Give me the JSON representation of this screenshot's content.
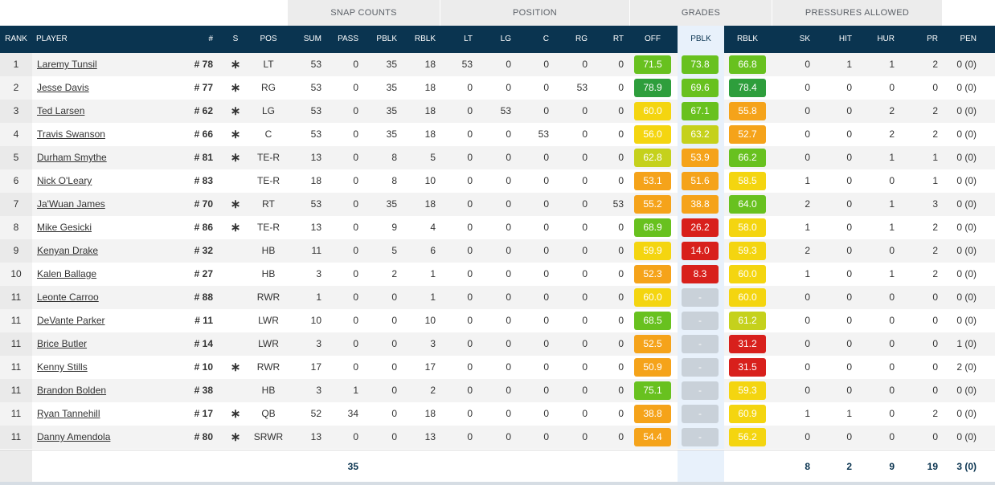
{
  "group_headers": [
    "SNAP COUNTS",
    "POSITION",
    "GRADES",
    "PRESSURES ALLOWED"
  ],
  "columns": [
    "RANK",
    "PLAYER",
    "#",
    "S",
    "POS",
    "SUM",
    "PASS",
    "PBLK",
    "RBLK",
    "LT",
    "LG",
    "C",
    "RG",
    "RT",
    "OFF",
    "PBLK",
    "RBLK",
    "SK",
    "HIT",
    "HUR",
    "PR",
    "PEN"
  ],
  "rows": [
    {
      "rank": "1",
      "player": "Laremy Tunsil",
      "num": "# 78",
      "starter": "*",
      "pos": "LT",
      "sum": "53",
      "pass": "0",
      "pblk": "35",
      "rblk": "18",
      "lt": "53",
      "lg": "0",
      "c": "0",
      "rg": "0",
      "rt": "0",
      "off": "71.5",
      "pblkg": "73.8",
      "rblkg": "66.8",
      "sk": "0",
      "hit": "1",
      "hur": "1",
      "pr": "2",
      "pen": "0 (0)"
    },
    {
      "rank": "2",
      "player": "Jesse Davis",
      "num": "# 77",
      "starter": "*",
      "pos": "RG",
      "sum": "53",
      "pass": "0",
      "pblk": "35",
      "rblk": "18",
      "lt": "0",
      "lg": "0",
      "c": "0",
      "rg": "53",
      "rt": "0",
      "off": "78.9",
      "pblkg": "69.6",
      "rblkg": "78.4",
      "sk": "0",
      "hit": "0",
      "hur": "0",
      "pr": "0",
      "pen": "0 (0)"
    },
    {
      "rank": "3",
      "player": "Ted Larsen",
      "num": "# 62",
      "starter": "*",
      "pos": "LG",
      "sum": "53",
      "pass": "0",
      "pblk": "35",
      "rblk": "18",
      "lt": "0",
      "lg": "53",
      "c": "0",
      "rg": "0",
      "rt": "0",
      "off": "60.0",
      "pblkg": "67.1",
      "rblkg": "55.8",
      "sk": "0",
      "hit": "0",
      "hur": "2",
      "pr": "2",
      "pen": "0 (0)"
    },
    {
      "rank": "4",
      "player": "Travis Swanson",
      "num": "# 66",
      "starter": "*",
      "pos": "C",
      "sum": "53",
      "pass": "0",
      "pblk": "35",
      "rblk": "18",
      "lt": "0",
      "lg": "0",
      "c": "53",
      "rg": "0",
      "rt": "0",
      "off": "56.0",
      "pblkg": "63.2",
      "rblkg": "52.7",
      "sk": "0",
      "hit": "0",
      "hur": "2",
      "pr": "2",
      "pen": "0 (0)"
    },
    {
      "rank": "5",
      "player": "Durham Smythe",
      "num": "# 81",
      "starter": "*",
      "pos": "TE-R",
      "sum": "13",
      "pass": "0",
      "pblk": "8",
      "rblk": "5",
      "lt": "0",
      "lg": "0",
      "c": "0",
      "rg": "0",
      "rt": "0",
      "off": "62.8",
      "pblkg": "53.9",
      "rblkg": "66.2",
      "sk": "0",
      "hit": "0",
      "hur": "1",
      "pr": "1",
      "pen": "0 (0)"
    },
    {
      "rank": "6",
      "player": "Nick O'Leary",
      "num": "# 83",
      "starter": "",
      "pos": "TE-R",
      "sum": "18",
      "pass": "0",
      "pblk": "8",
      "rblk": "10",
      "lt": "0",
      "lg": "0",
      "c": "0",
      "rg": "0",
      "rt": "0",
      "off": "53.1",
      "pblkg": "51.6",
      "rblkg": "58.5",
      "sk": "1",
      "hit": "0",
      "hur": "0",
      "pr": "1",
      "pen": "0 (0)"
    },
    {
      "rank": "7",
      "player": "Ja'Wuan James",
      "num": "# 70",
      "starter": "*",
      "pos": "RT",
      "sum": "53",
      "pass": "0",
      "pblk": "35",
      "rblk": "18",
      "lt": "0",
      "lg": "0",
      "c": "0",
      "rg": "0",
      "rt": "53",
      "off": "55.2",
      "pblkg": "38.8",
      "rblkg": "64.0",
      "sk": "2",
      "hit": "0",
      "hur": "1",
      "pr": "3",
      "pen": "0 (0)"
    },
    {
      "rank": "8",
      "player": "Mike Gesicki",
      "num": "# 86",
      "starter": "*",
      "pos": "TE-R",
      "sum": "13",
      "pass": "0",
      "pblk": "9",
      "rblk": "4",
      "lt": "0",
      "lg": "0",
      "c": "0",
      "rg": "0",
      "rt": "0",
      "off": "68.9",
      "pblkg": "26.2",
      "rblkg": "58.0",
      "sk": "1",
      "hit": "0",
      "hur": "1",
      "pr": "2",
      "pen": "0 (0)"
    },
    {
      "rank": "9",
      "player": "Kenyan Drake",
      "num": "# 32",
      "starter": "",
      "pos": "HB",
      "sum": "11",
      "pass": "0",
      "pblk": "5",
      "rblk": "6",
      "lt": "0",
      "lg": "0",
      "c": "0",
      "rg": "0",
      "rt": "0",
      "off": "59.9",
      "pblkg": "14.0",
      "rblkg": "59.3",
      "sk": "2",
      "hit": "0",
      "hur": "0",
      "pr": "2",
      "pen": "0 (0)"
    },
    {
      "rank": "10",
      "player": "Kalen Ballage",
      "num": "# 27",
      "starter": "",
      "pos": "HB",
      "sum": "3",
      "pass": "0",
      "pblk": "2",
      "rblk": "1",
      "lt": "0",
      "lg": "0",
      "c": "0",
      "rg": "0",
      "rt": "0",
      "off": "52.3",
      "pblkg": "8.3",
      "rblkg": "60.0",
      "sk": "1",
      "hit": "0",
      "hur": "1",
      "pr": "2",
      "pen": "0 (0)"
    },
    {
      "rank": "11",
      "player": "Leonte Carroo",
      "num": "# 88",
      "starter": "",
      "pos": "RWR",
      "sum": "1",
      "pass": "0",
      "pblk": "0",
      "rblk": "1",
      "lt": "0",
      "lg": "0",
      "c": "0",
      "rg": "0",
      "rt": "0",
      "off": "60.0",
      "pblkg": "-",
      "rblkg": "60.0",
      "sk": "0",
      "hit": "0",
      "hur": "0",
      "pr": "0",
      "pen": "0 (0)"
    },
    {
      "rank": "11",
      "player": "DeVante Parker",
      "num": "# 11",
      "starter": "",
      "pos": "LWR",
      "sum": "10",
      "pass": "0",
      "pblk": "0",
      "rblk": "10",
      "lt": "0",
      "lg": "0",
      "c": "0",
      "rg": "0",
      "rt": "0",
      "off": "68.5",
      "pblkg": "-",
      "rblkg": "61.2",
      "sk": "0",
      "hit": "0",
      "hur": "0",
      "pr": "0",
      "pen": "0 (0)"
    },
    {
      "rank": "11",
      "player": "Brice Butler",
      "num": "# 14",
      "starter": "",
      "pos": "LWR",
      "sum": "3",
      "pass": "0",
      "pblk": "0",
      "rblk": "3",
      "lt": "0",
      "lg": "0",
      "c": "0",
      "rg": "0",
      "rt": "0",
      "off": "52.5",
      "pblkg": "-",
      "rblkg": "31.2",
      "sk": "0",
      "hit": "0",
      "hur": "0",
      "pr": "0",
      "pen": "1 (0)"
    },
    {
      "rank": "11",
      "player": "Kenny Stills",
      "num": "# 10",
      "starter": "*",
      "pos": "RWR",
      "sum": "17",
      "pass": "0",
      "pblk": "0",
      "rblk": "17",
      "lt": "0",
      "lg": "0",
      "c": "0",
      "rg": "0",
      "rt": "0",
      "off": "50.9",
      "pblkg": "-",
      "rblkg": "31.5",
      "sk": "0",
      "hit": "0",
      "hur": "0",
      "pr": "0",
      "pen": "2 (0)"
    },
    {
      "rank": "11",
      "player": "Brandon Bolden",
      "num": "# 38",
      "starter": "",
      "pos": "HB",
      "sum": "3",
      "pass": "1",
      "pblk": "0",
      "rblk": "2",
      "lt": "0",
      "lg": "0",
      "c": "0",
      "rg": "0",
      "rt": "0",
      "off": "75.1",
      "pblkg": "-",
      "rblkg": "59.3",
      "sk": "0",
      "hit": "0",
      "hur": "0",
      "pr": "0",
      "pen": "0 (0)"
    },
    {
      "rank": "11",
      "player": "Ryan Tannehill",
      "num": "# 17",
      "starter": "*",
      "pos": "QB",
      "sum": "52",
      "pass": "34",
      "pblk": "0",
      "rblk": "18",
      "lt": "0",
      "lg": "0",
      "c": "0",
      "rg": "0",
      "rt": "0",
      "off": "38.8",
      "pblkg": "-",
      "rblkg": "60.9",
      "sk": "1",
      "hit": "1",
      "hur": "0",
      "pr": "2",
      "pen": "0 (0)"
    },
    {
      "rank": "11",
      "player": "Danny Amendola",
      "num": "# 80",
      "starter": "*",
      "pos": "SRWR",
      "sum": "13",
      "pass": "0",
      "pblk": "0",
      "rblk": "13",
      "lt": "0",
      "lg": "0",
      "c": "0",
      "rg": "0",
      "rt": "0",
      "off": "54.4",
      "pblkg": "-",
      "rblkg": "56.2",
      "sk": "0",
      "hit": "0",
      "hur": "0",
      "pr": "0",
      "pen": "0 (0)"
    }
  ],
  "totals": {
    "pass": "35",
    "sk": "8",
    "hit": "2",
    "hur": "9",
    "pr": "19",
    "pen": "3 (0)"
  },
  "grade_colors": {
    "dark_green": "#2e9e3c",
    "green": "#68c11f",
    "yellow_green": "#c5d11c",
    "yellow": "#f4d510",
    "orange": "#f5a31a",
    "red": "#d8201c",
    "empty": "#c9d1d9"
  }
}
